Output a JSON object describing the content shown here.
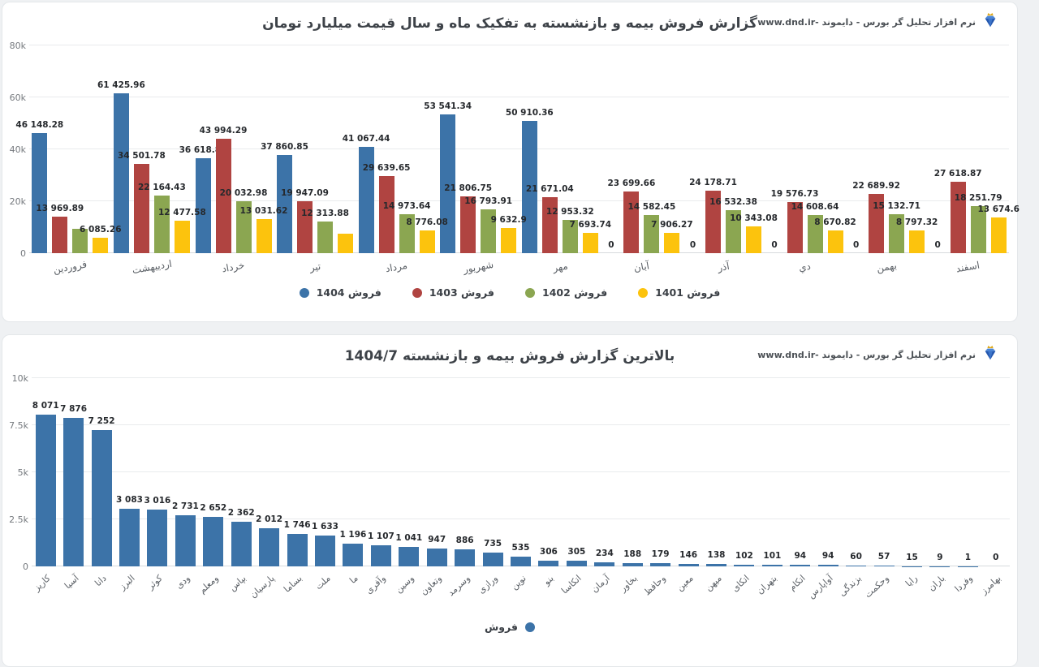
{
  "brand": {
    "text": "نرم افزار تحلیل گر بورس - دایموند -www.dnd.ir"
  },
  "colors": {
    "blue": "#3c73a8",
    "red": "#b04441",
    "green": "#8ba651",
    "yellow": "#fcc30d",
    "title_text": "#3d4248",
    "grid": "#e9ebed",
    "page_bg": "#eff1f3",
    "card_bg": "#ffffff"
  },
  "chart_data": [
    {
      "id": "monthly-sales",
      "type": "bar",
      "title": "گزارش فروش بیمه و بازنشسته به تفکیک ماه و سال قیمت میلیارد تومان",
      "categories": [
        "فروردین",
        "اردیبهشت",
        "خرداد",
        "تیر",
        "مرداد",
        "شهریور",
        "مهر",
        "آبان",
        "آذر",
        "دي",
        "بهمن",
        "اسفند"
      ],
      "series": [
        {
          "name": "فروش 1404",
          "color": "blue",
          "values": [
            46148.28,
            61425.96,
            36618.82,
            37860.85,
            41067.44,
            53541.34,
            50910.36,
            0,
            0,
            0,
            0,
            0
          ],
          "labels": [
            "46 148.28",
            "61 425.96",
            "36 618.82",
            "37 860.85",
            "41 067.44",
            "53 541.34",
            "50 910.36",
            "0",
            "0",
            "0",
            "0",
            "0"
          ]
        },
        {
          "name": "فروش 1403",
          "color": "red",
          "values": [
            13969.89,
            34501.78,
            43994.29,
            19947.09,
            29639.65,
            21806.75,
            21671.04,
            23699.66,
            24178.71,
            19576.73,
            22689.92,
            27618.87
          ],
          "labels": [
            "13 969.89",
            "34 501.78",
            "43 994.29",
            "19 947.09",
            "29 639.65",
            "21 806.75",
            "21 671.04",
            "23 699.66",
            "24 178.71",
            "19 576.73",
            "22 689.92",
            "27 618.87"
          ]
        },
        {
          "name": "فروش 1402",
          "color": "green",
          "values": [
            9400,
            22164.43,
            20032.98,
            12313.88,
            14973.64,
            16793.91,
            12953.32,
            14582.45,
            16532.38,
            14608.64,
            15132.71,
            18251.79
          ],
          "labels": [
            "",
            "22 164.43",
            "20 032.98",
            "12 313.88",
            "14 973.64",
            "16 793.91",
            "12 953.32",
            "14 582.45",
            "16 532.38",
            "14 608.64",
            "15 132.71",
            "18 251.79"
          ]
        },
        {
          "name": "فروش 1401",
          "color": "yellow",
          "values": [
            6085.26,
            12477.58,
            13031.62,
            7500,
            8776.08,
            9632.9,
            7693.74,
            7906.27,
            10343.08,
            8670.82,
            8797.32,
            13674.6
          ],
          "labels": [
            "6 085.26",
            "12 477.58",
            "13 031.62",
            "",
            "8 776.08",
            "9 632.9",
            "7 693.74",
            "7 906.27",
            "10 343.08",
            "8 670.82",
            "8 797.32",
            "13 674.6"
          ]
        }
      ],
      "ylim": [
        0,
        80000
      ],
      "ytick_values": [
        0,
        20000,
        40000,
        60000,
        80000
      ],
      "ytick_labels": [
        "0",
        "20k",
        "40k",
        "60k",
        "80k"
      ],
      "grid": true,
      "legend_position": "bottom"
    },
    {
      "id": "top-companies",
      "type": "bar",
      "title": "بالاترین گزارش فروش بیمه و بازنشسته 1404/7",
      "categories": [
        "کاریز",
        "آسیا",
        "دانا",
        "البرز",
        "کوثر",
        "ودی",
        "ومعلم",
        "بپاس",
        "پارسیان",
        "بساما",
        "ملت",
        "ما",
        "وآفری",
        "وسین",
        "وتعاون",
        "وسرمد",
        "ورازی",
        "نوین",
        "بنو",
        "اتکاسا",
        "آرمان",
        "بخاور",
        "وحافظ",
        "معین",
        "میهن",
        "اتکای",
        "بتهران",
        "اتکام",
        "آواپارس",
        "بزندگی",
        "وحکمت",
        "رایا",
        "باران",
        "وفردا",
        "بهامرز"
      ],
      "series": [
        {
          "name": "فروش",
          "color": "blue",
          "values": [
            8071,
            7876,
            7252,
            3083,
            3016,
            2731,
            2652,
            2362,
            2012,
            1746,
            1633,
            1196,
            1107,
            1041,
            947,
            886,
            735,
            535,
            306,
            305,
            234,
            188,
            179,
            146,
            138,
            102,
            101,
            94,
            94,
            60,
            57,
            15,
            9,
            1,
            0
          ],
          "labels": [
            "8 071",
            "7 876",
            "7 252",
            "3 083",
            "3 016",
            "2 731",
            "2 652",
            "2 362",
            "2 012",
            "1 746",
            "1 633",
            "1 196",
            "1 107",
            "1 041",
            "947",
            "886",
            "735",
            "535",
            "306",
            "305",
            "234",
            "188",
            "179",
            "146",
            "138",
            "102",
            "101",
            "94",
            "94",
            "60",
            "57",
            "15",
            "9",
            "1",
            "0"
          ]
        }
      ],
      "ylim": [
        0,
        10000
      ],
      "ytick_values": [
        0,
        2500,
        5000,
        7500,
        10000
      ],
      "ytick_labels": [
        "0",
        "2.5k",
        "5k",
        "7.5k",
        "10k"
      ],
      "grid": true,
      "legend_position": "bottom"
    }
  ]
}
